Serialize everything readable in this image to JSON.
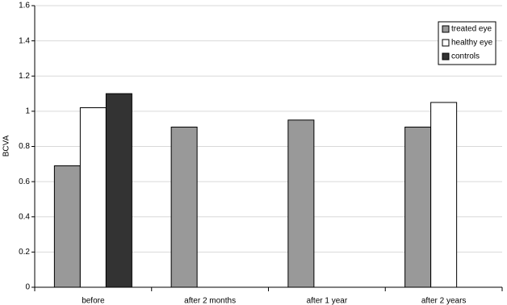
{
  "chart_data": {
    "type": "bar",
    "y_label": "BCVA",
    "categories": [
      "before",
      "after 2 months",
      "after 1 year",
      "after 2 years"
    ],
    "series": [
      {
        "name": "treated eye",
        "color": "#999999",
        "values": [
          0.69,
          0.91,
          0.95,
          0.91
        ]
      },
      {
        "name": "healthy eye",
        "color": "#ffffff",
        "values": [
          1.02,
          null,
          null,
          1.05
        ]
      },
      {
        "name": "controls",
        "color": "#333333",
        "values": [
          1.1,
          null,
          null,
          null
        ]
      }
    ],
    "ylim": [
      0,
      1.6
    ],
    "yticks": [
      0,
      0.2,
      0.4,
      0.6,
      0.8,
      1,
      1.2,
      1.4,
      1.6
    ],
    "grid": true,
    "legend": "top-right"
  }
}
